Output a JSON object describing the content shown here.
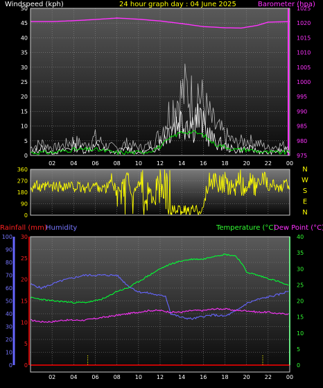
{
  "header": {
    "left_label": "Windspeed (kph)",
    "title": "24 hour graph day : 04 June 2025",
    "right_label": "Barometer (hpa)"
  },
  "mid": {
    "compass_labels": [
      "N",
      "W",
      "S",
      "E",
      "N"
    ]
  },
  "bottom_header": {
    "rain_label": "Rainfall (mm)",
    "humidity_label": "Humidity",
    "temp_label": "Temperature (°C)",
    "dew_label": "Dew Point (°C)"
  },
  "colors": {
    "wind_speed": "#ffffff",
    "wind_gust": "#c8c8c8",
    "wind_avg": "#00dd00",
    "barometer": "#ff33ff",
    "direction": "#ffff00",
    "rain": "#ff0000",
    "humidity": "#6666ff",
    "temperature": "#00ff33",
    "dewpoint": "#ff33ff",
    "axis_left": "#ff0000",
    "axis_hum": "#6666ff",
    "title": "#ffff00"
  },
  "chart_data": [
    {
      "type": "line",
      "x_ticks": [
        "02",
        "04",
        "06",
        "08",
        "10",
        "12",
        "14",
        "16",
        "18",
        "20",
        "22",
        "00"
      ],
      "ylim_wind": [
        0,
        50
      ],
      "wind_ticks": [
        0,
        5,
        10,
        15,
        20,
        25,
        30,
        35,
        40,
        45,
        50
      ],
      "ylim_baro": [
        975,
        1025
      ],
      "baro_ticks": [
        975,
        980,
        985,
        990,
        995,
        1000,
        1005,
        1010,
        1015,
        1020,
        1025
      ],
      "grid": true,
      "series": [
        {
          "key": "barometer",
          "hours": [
            0,
            2,
            4,
            6,
            8,
            10,
            12,
            14,
            16,
            18,
            19.5,
            21,
            22,
            24
          ],
          "values": [
            1020.5,
            1020.5,
            1020.8,
            1021.2,
            1021.7,
            1021.3,
            1020.7,
            1019.8,
            1018.8,
            1018.4,
            1018.3,
            1019.2,
            1020.3,
            1020.5
          ]
        },
        {
          "key": "wind_gust",
          "hours": [
            0,
            1,
            2,
            3,
            4,
            5,
            6,
            7,
            8,
            9,
            10,
            11,
            12,
            12.5,
            13,
            13.5,
            14,
            14.5,
            15,
            15.5,
            16,
            16.5,
            17,
            18,
            19,
            20,
            21,
            22,
            23,
            24
          ],
          "values": [
            3,
            5,
            3,
            4,
            6,
            4,
            7,
            4,
            3,
            5,
            3,
            4,
            8,
            14,
            18,
            22,
            24,
            26,
            22,
            26,
            20,
            16,
            12,
            8,
            5,
            6,
            5,
            3,
            4,
            4
          ]
        },
        {
          "key": "wind_speed",
          "hours": [
            0,
            1,
            2,
            3,
            4,
            5,
            6,
            7,
            8,
            9,
            10,
            11,
            12,
            12.5,
            13,
            13.5,
            14,
            14.5,
            15,
            15.5,
            16,
            16.5,
            17,
            18,
            19,
            20,
            21,
            22,
            23,
            24
          ],
          "values": [
            1,
            3,
            1,
            2,
            4,
            2,
            4,
            2,
            1,
            3,
            1,
            2,
            5,
            9,
            12,
            14,
            15,
            16,
            13,
            16,
            12,
            9,
            6,
            4,
            2,
            3,
            2,
            1,
            2,
            2
          ]
        },
        {
          "key": "wind_avg",
          "hours": [
            0,
            2,
            4,
            6,
            8,
            10,
            11,
            12,
            13,
            14,
            15,
            16,
            17,
            18,
            19,
            20,
            21,
            22,
            23,
            24
          ],
          "values": [
            1,
            1,
            2,
            2,
            1,
            1,
            1.5,
            3,
            6,
            8,
            8,
            7,
            4,
            3,
            2,
            2,
            1.5,
            1,
            1,
            1
          ]
        }
      ]
    },
    {
      "type": "scatter",
      "x_ticks": [
        "02",
        "04",
        "06",
        "08",
        "10",
        "12",
        "14",
        "16",
        "18",
        "20",
        "22",
        "00"
      ],
      "ylim": [
        0,
        360
      ],
      "y_ticks": [
        0,
        90,
        180,
        270,
        360
      ],
      "series": [
        {
          "key": "direction",
          "hours": [
            0,
            0.5,
            1,
            1.5,
            2,
            3,
            4,
            5,
            6,
            7,
            7.5,
            8,
            8.5,
            9,
            9.5,
            10,
            10.5,
            11,
            11.5,
            12,
            12.5,
            13,
            13.5,
            14,
            14.5,
            15,
            15.5,
            16,
            16.5,
            17,
            17.5,
            18,
            18.5,
            19,
            19.5,
            20,
            20.5,
            21,
            21.5,
            22,
            22.5,
            23,
            23.5,
            24
          ],
          "values": [
            215,
            240,
            200,
            230,
            220,
            230,
            225,
            210,
            235,
            200,
            290,
            170,
            250,
            330,
            120,
            300,
            40,
            200,
            60,
            330,
            30,
            40,
            30,
            40,
            30,
            40,
            40,
            60,
            200,
            320,
            180,
            300,
            200,
            250,
            330,
            200,
            280,
            220,
            300,
            200,
            250,
            210,
            240,
            230
          ]
        }
      ]
    },
    {
      "type": "line",
      "x_ticks": [
        "02",
        "04",
        "06",
        "08",
        "10",
        "12",
        "14",
        "16",
        "18",
        "20",
        "22",
        "00"
      ],
      "ylim_rain": [
        0,
        30
      ],
      "rain_ticks": [
        0,
        5,
        10,
        15,
        20,
        25,
        30
      ],
      "ylim_hum": [
        0,
        100
      ],
      "hum_ticks": [
        0,
        10,
        20,
        30,
        40,
        50,
        60,
        70,
        80,
        90,
        100
      ],
      "ylim_temp": [
        0,
        40
      ],
      "temp_ticks": [
        0,
        5,
        10,
        15,
        20,
        25,
        30,
        35,
        40
      ],
      "series": [
        {
          "key": "humidity",
          "hours": [
            0,
            1,
            2,
            3,
            4,
            5,
            6,
            7,
            8,
            9,
            10,
            11,
            12,
            12.5,
            13,
            14,
            15,
            16,
            17,
            18,
            19,
            20,
            21,
            22,
            23,
            24
          ],
          "values": [
            63,
            60,
            63,
            66,
            68,
            70,
            70,
            70,
            70,
            62,
            57,
            56,
            54,
            54,
            40,
            37,
            36,
            38,
            39,
            38,
            42,
            48,
            51,
            53,
            55,
            58
          ]
        },
        {
          "key": "temperature",
          "hours": [
            0,
            1,
            2,
            3,
            4,
            5,
            6,
            7,
            8,
            9,
            10,
            11,
            12,
            13,
            14,
            15,
            16,
            17,
            18,
            19,
            19.5,
            20,
            21,
            22,
            23,
            24
          ],
          "values": [
            21,
            20.5,
            20,
            19.8,
            19.5,
            19.5,
            20,
            21,
            23,
            24,
            26,
            28,
            30,
            31.5,
            32.5,
            33,
            33,
            34,
            34.5,
            34,
            32,
            29,
            28,
            27,
            26,
            24.5
          ]
        },
        {
          "key": "dewpoint",
          "hours": [
            0,
            1,
            2,
            3,
            4,
            5,
            6,
            7,
            8,
            9,
            10,
            11,
            12,
            13,
            14,
            15,
            16,
            17,
            18,
            19,
            20,
            21,
            22,
            23,
            24
          ],
          "values": [
            14,
            13.5,
            13.5,
            14,
            14,
            14,
            14.5,
            15,
            15.5,
            16,
            16.5,
            17,
            17,
            16.5,
            16.5,
            17,
            17,
            17.5,
            17.5,
            17,
            17,
            16.5,
            16.5,
            16,
            16
          ]
        },
        {
          "key": "rain",
          "hours": [
            0,
            24
          ],
          "values": [
            0,
            0
          ]
        }
      ],
      "markers_hours": [
        5.3,
        21.5
      ]
    }
  ]
}
